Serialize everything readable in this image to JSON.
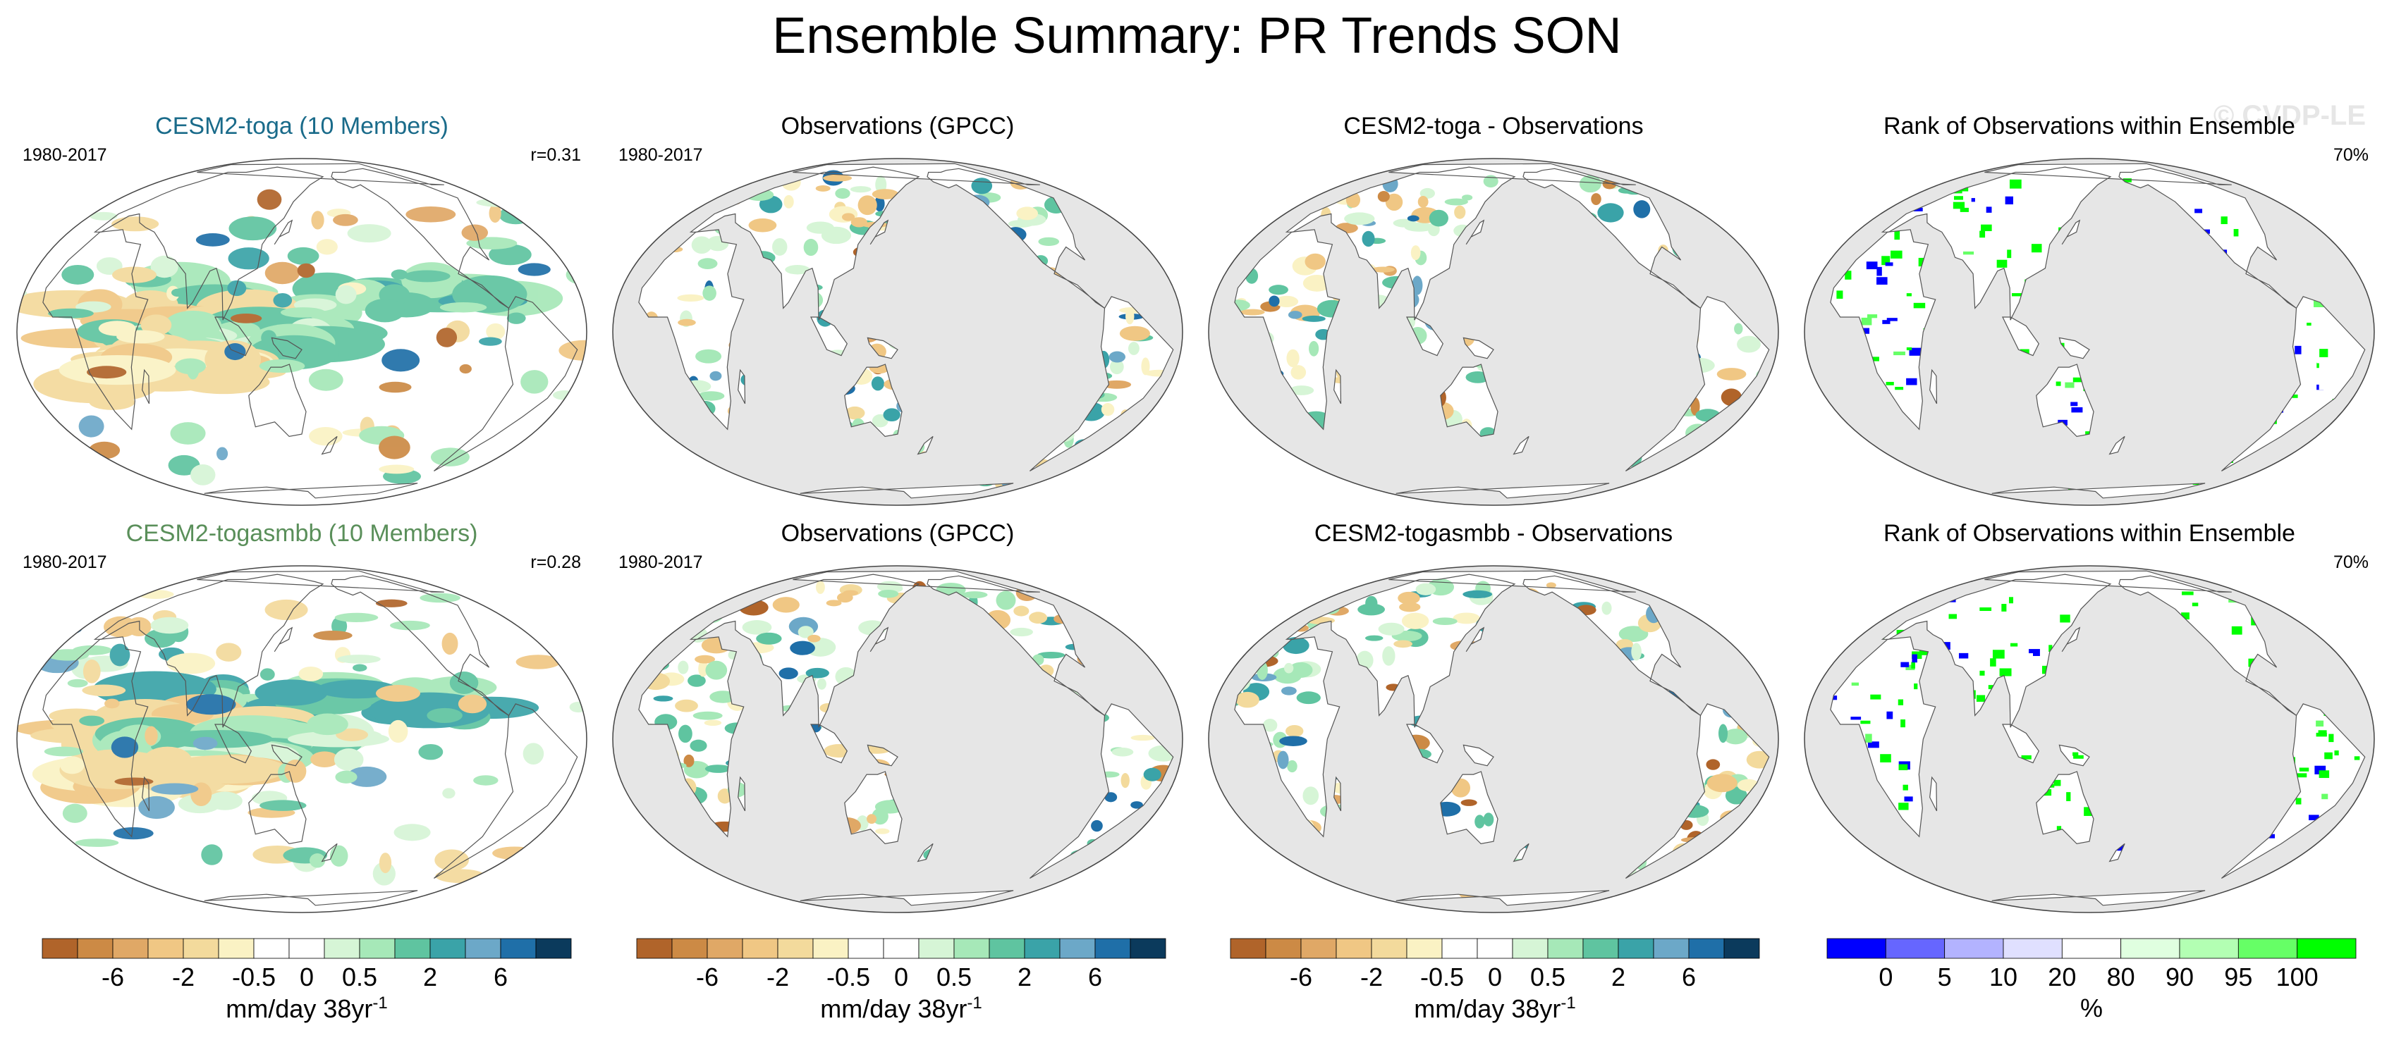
{
  "page": {
    "title": "Ensemble Summary: PR Trends SON",
    "watermark": "© CVDP-LE"
  },
  "panels": [
    {
      "title": "CESM2-toga (10 Members)",
      "title_color": "#1a6b8a",
      "left": "1980-2017",
      "right": "r=0.31",
      "kind": "model",
      "seed": 11
    },
    {
      "title": "Observations (GPCC)",
      "title_color": "#000000",
      "left": "1980-2017",
      "right": "",
      "kind": "obs",
      "seed": 23
    },
    {
      "title": "CESM2-toga - Observations",
      "title_color": "#000000",
      "left": "",
      "right": "",
      "kind": "diff",
      "seed": 37
    },
    {
      "title": "Rank of Observations within Ensemble",
      "title_color": "#000000",
      "left": "",
      "right": "70%",
      "kind": "rank",
      "seed": 41
    },
    {
      "title": "CESM2-togasmbb (10 Members)",
      "title_color": "#5a8f5a",
      "left": "1980-2017",
      "right": "r=0.28",
      "kind": "model",
      "seed": 53
    },
    {
      "title": "Observations (GPCC)",
      "title_color": "#000000",
      "left": "1980-2017",
      "right": "",
      "kind": "obs",
      "seed": 67
    },
    {
      "title": "CESM2-togasmbb - Observations",
      "title_color": "#000000",
      "left": "",
      "right": "",
      "kind": "diff",
      "seed": 71
    },
    {
      "title": "Rank of Observations within Ensemble",
      "title_color": "#000000",
      "left": "",
      "right": "70%",
      "kind": "rank",
      "seed": 89
    }
  ],
  "colorbars": [
    {
      "kind": "trend",
      "ticks": [
        "-6",
        "-2",
        "-0.5",
        "0",
        "0.5",
        "2",
        "6"
      ],
      "unit_main": "mm/day 38yr",
      "unit_sup": "-1"
    },
    {
      "kind": "trend",
      "ticks": [
        "-6",
        "-2",
        "-0.5",
        "0",
        "0.5",
        "2",
        "6"
      ],
      "unit_main": "mm/day 38yr",
      "unit_sup": "-1"
    },
    {
      "kind": "trend",
      "ticks": [
        "-6",
        "-2",
        "-0.5",
        "0",
        "0.5",
        "2",
        "6"
      ],
      "unit_main": "mm/day 38yr",
      "unit_sup": "-1"
    },
    {
      "kind": "rank",
      "ticks": [
        "0",
        "5",
        "10",
        "20",
        "80",
        "90",
        "95",
        "100"
      ],
      "unit_main": "%",
      "unit_sup": ""
    }
  ],
  "palettes": {
    "trend": [
      "#b0642a",
      "#cc8a45",
      "#e0a866",
      "#f0c784",
      "#f3da9c",
      "#faf2c4",
      "#ffffff",
      "#ffffff",
      "#d6f5d6",
      "#a6e8b8",
      "#5fc4a0",
      "#3aa3a8",
      "#6ca8c8",
      "#1f6fa8",
      "#0b3a5c"
    ],
    "rank": [
      "#0000ff",
      "#6666ff",
      "#b3b3ff",
      "#e0e0ff",
      "#ffffff",
      "#e0ffe0",
      "#b3ffb3",
      "#66ff66",
      "#00ff00"
    ],
    "ocean_obs": "#e6e6e6"
  },
  "chart_data": {
    "type": "heatmap",
    "title": "Ensemble Summary: PR Trends SON",
    "projection": "Robinson, Pacific-centered",
    "period": "1980-2017",
    "trend_colorbar_ticks": [
      -6,
      -2,
      -0.5,
      0,
      0.5,
      2,
      6
    ],
    "trend_units": "mm/day 38yr-1",
    "rank_colorbar_ticks": [
      0,
      5,
      10,
      20,
      80,
      90,
      95,
      100
    ],
    "rank_units": "%",
    "pattern_correlations": [
      {
        "name": "CESM2-toga (10 Members)",
        "r": 0.31
      },
      {
        "name": "CESM2-togasmbb (10 Members)",
        "r": 0.28
      }
    ],
    "rank_within_ensemble_pct": [
      70,
      70
    ]
  }
}
